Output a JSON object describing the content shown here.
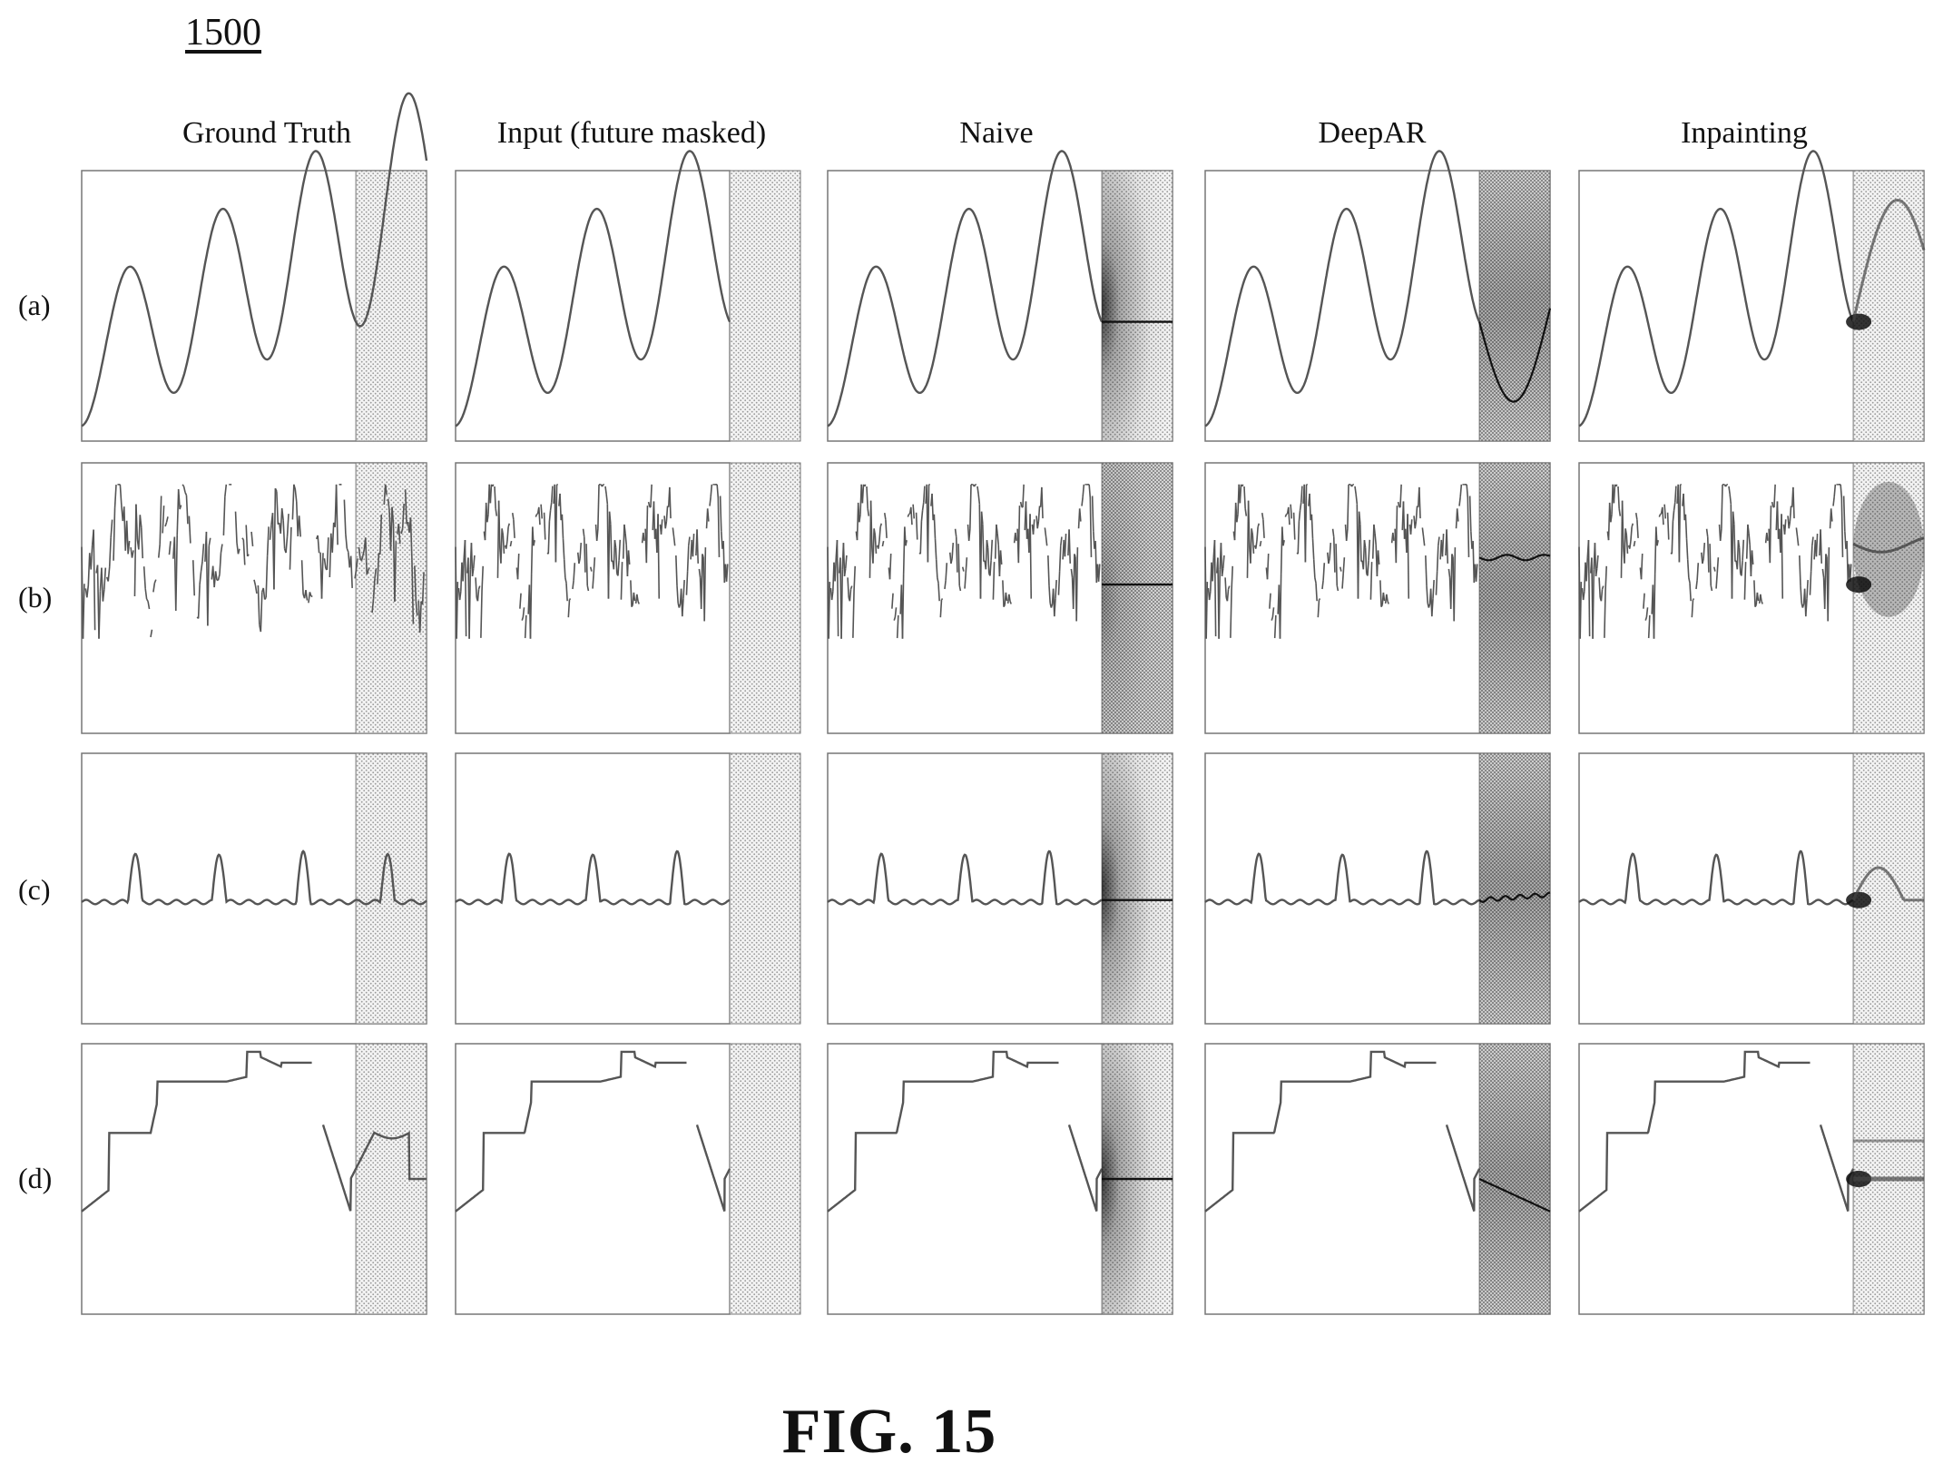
{
  "figure": {
    "ref_number": "1500",
    "caption": "FIG. 15"
  },
  "columns": [
    {
      "key": "gt",
      "label": "Ground Truth"
    },
    {
      "key": "input",
      "label": "Input (future masked)"
    },
    {
      "key": "naive",
      "label": "Naive"
    },
    {
      "key": "deepar",
      "label": "DeepAR"
    },
    {
      "key": "inpainting",
      "label": "Inpainting"
    }
  ],
  "rows": [
    {
      "key": "a",
      "label": "(a)",
      "signal": "multi-sine"
    },
    {
      "key": "b",
      "label": "(b)",
      "signal": "sparse-noisy"
    },
    {
      "key": "c",
      "label": "(c)",
      "signal": "periodic-spikes"
    },
    {
      "key": "d",
      "label": "(d)",
      "signal": "step-levels"
    }
  ],
  "style": {
    "line_color": "#555555",
    "shade_color": "#bdbdbd",
    "border_color": "#777777",
    "dark_color": "#111111"
  }
}
